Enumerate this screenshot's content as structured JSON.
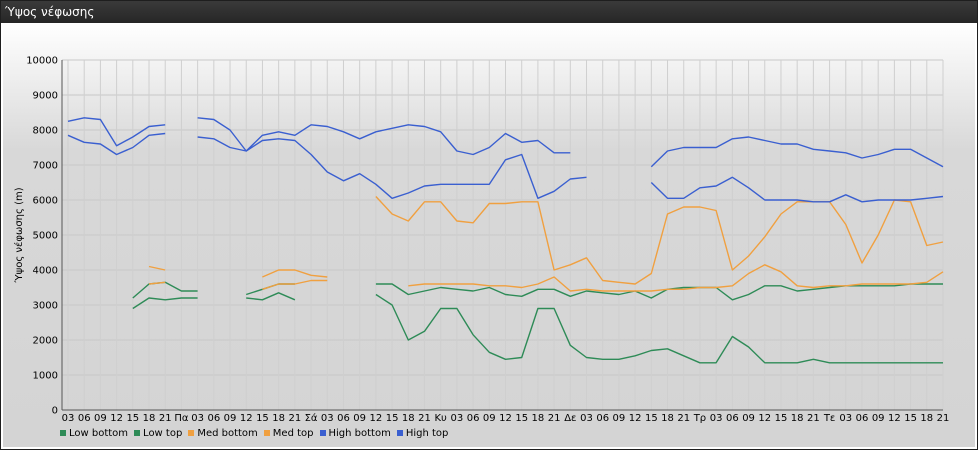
{
  "window": {
    "title": "Ύψος νέφωσης"
  },
  "chart_data": {
    "type": "line",
    "ylabel": "Ύψος νέφωσης (m)",
    "ylim": [
      0,
      10000
    ],
    "yticks": [
      0,
      1000,
      2000,
      3000,
      4000,
      5000,
      6000,
      7000,
      8000,
      9000,
      10000
    ],
    "x_labels": [
      "03",
      "06",
      "09",
      "12",
      "15",
      "18",
      "21",
      "Πα",
      "03",
      "06",
      "09",
      "12",
      "15",
      "18",
      "21",
      "Σά",
      "03",
      "06",
      "09",
      "12",
      "15",
      "18",
      "21",
      "Κυ",
      "03",
      "06",
      "09",
      "12",
      "15",
      "18",
      "21",
      "Δε",
      "03",
      "06",
      "09",
      "12",
      "15",
      "18",
      "21",
      "Τρ",
      "03",
      "06",
      "09",
      "12",
      "15",
      "18",
      "21",
      "Τε",
      "03",
      "06",
      "09",
      "12",
      "15",
      "18",
      "21"
    ],
    "grid": true,
    "legend_position": "bottom-left",
    "series": [
      {
        "name": "Low bottom",
        "color": "#2e8b57",
        "values": [
          null,
          null,
          null,
          null,
          2900,
          3200,
          3150,
          3200,
          3200,
          null,
          null,
          3200,
          3150,
          3350,
          3150,
          null,
          null,
          null,
          null,
          3300,
          3000,
          2000,
          2250,
          2900,
          2900,
          2150,
          1650,
          1450,
          1500,
          2900,
          2900,
          1850,
          1500,
          1450,
          1450,
          1550,
          1700,
          1750,
          1550,
          1350,
          1350,
          2100,
          1800,
          1350,
          1350,
          1350,
          1450,
          1350,
          1350,
          1350,
          1350,
          1350,
          1350,
          1350,
          1350
        ]
      },
      {
        "name": "Low top",
        "color": "#2e8b57",
        "values": [
          null,
          null,
          null,
          null,
          3200,
          3600,
          3650,
          3400,
          3400,
          null,
          null,
          3300,
          3450,
          3600,
          3600,
          null,
          null,
          null,
          null,
          3600,
          3600,
          3300,
          3400,
          3500,
          3450,
          3400,
          3500,
          3300,
          3250,
          3450,
          3450,
          3250,
          3400,
          3350,
          3300,
          3400,
          3200,
          3450,
          3500,
          3500,
          3500,
          3150,
          3300,
          3550,
          3550,
          3400,
          3450,
          3500,
          3550,
          3550,
          3550,
          3550,
          3600,
          3600,
          3600
        ]
      },
      {
        "name": "Med bottom",
        "color": "#f0a040",
        "values": [
          null,
          null,
          null,
          null,
          null,
          3600,
          3650,
          null,
          null,
          null,
          null,
          null,
          3450,
          3600,
          3600,
          3700,
          3700,
          null,
          null,
          null,
          null,
          3550,
          3600,
          3600,
          3600,
          3600,
          3550,
          3550,
          3500,
          3600,
          3800,
          3400,
          3450,
          3400,
          3400,
          3400,
          3400,
          3450,
          3450,
          3500,
          3500,
          3550,
          3900,
          4150,
          3950,
          3550,
          3500,
          3550,
          3550,
          3600,
          3600,
          3600,
          3600,
          3650,
          3950
        ]
      },
      {
        "name": "Med top",
        "color": "#f0a040",
        "values": [
          null,
          null,
          null,
          null,
          null,
          4100,
          4000,
          null,
          null,
          null,
          null,
          null,
          3800,
          4000,
          4000,
          3850,
          3800,
          null,
          null,
          6100,
          5600,
          5400,
          5950,
          5950,
          5400,
          5350,
          5900,
          5900,
          5950,
          5950,
          4000,
          4150,
          4350,
          3700,
          3650,
          3600,
          3900,
          5600,
          5800,
          5800,
          5700,
          4000,
          4400,
          4950,
          5600,
          5950,
          5950,
          5950,
          5300,
          4200,
          5000,
          6000,
          5950,
          4700,
          4800
        ]
      },
      {
        "name": "High bottom",
        "color": "#3a5fd0",
        "values": [
          7850,
          7650,
          7600,
          7300,
          7500,
          7850,
          7900,
          null,
          7800,
          7750,
          7500,
          7400,
          7700,
          7750,
          7700,
          7300,
          6800,
          6550,
          6750,
          6450,
          6050,
          6200,
          6400,
          6450,
          6450,
          6450,
          6450,
          7150,
          7300,
          6050,
          6250,
          6600,
          6650,
          null,
          null,
          null,
          6500,
          6050,
          6050,
          6350,
          6400,
          6650,
          6350,
          6000,
          6000,
          6000,
          5950,
          5950,
          6150,
          5950,
          6000,
          6000,
          6000,
          6050,
          6100
        ]
      },
      {
        "name": "High top",
        "color": "#3a5fd0",
        "values": [
          8250,
          8350,
          8300,
          7550,
          7800,
          8100,
          8150,
          null,
          8350,
          8300,
          8000,
          7400,
          7850,
          7950,
          7850,
          8150,
          8100,
          7950,
          7750,
          7950,
          8050,
          8150,
          8100,
          7950,
          7400,
          7300,
          7500,
          7900,
          7650,
          7700,
          7350,
          7350,
          null,
          null,
          null,
          null,
          6950,
          7400,
          7500,
          7500,
          7500,
          7750,
          7800,
          7700,
          7600,
          7600,
          7450,
          7400,
          7350,
          7200,
          7300,
          7450,
          7450,
          7200,
          6950
        ]
      }
    ]
  }
}
